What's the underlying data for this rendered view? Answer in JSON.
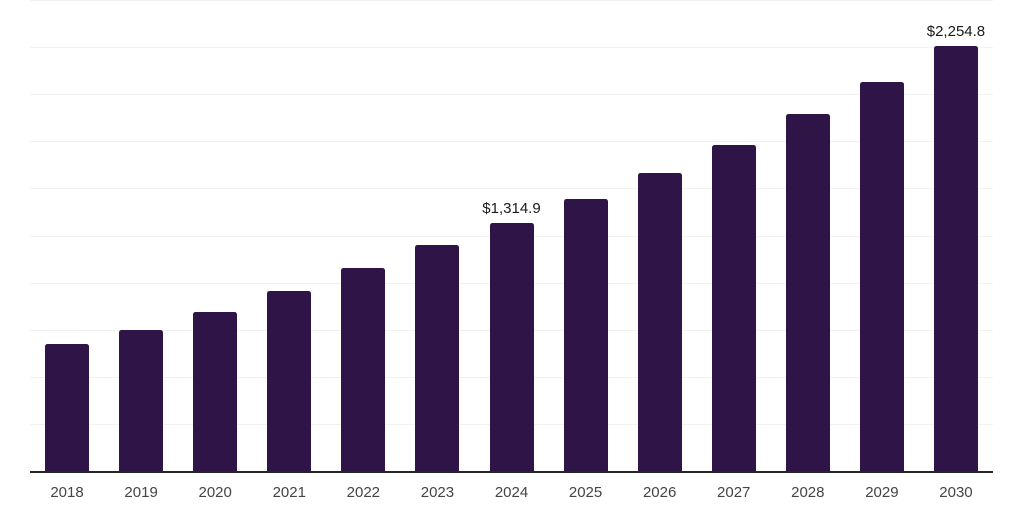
{
  "chart_data": {
    "type": "bar",
    "title": "",
    "categories": [
      "2018",
      "2019",
      "2020",
      "2021",
      "2022",
      "2023",
      "2024",
      "2025",
      "2026",
      "2027",
      "2028",
      "2029",
      "2030"
    ],
    "values": [
      675,
      750,
      845,
      955,
      1080,
      1200,
      1314.9,
      1445,
      1580,
      1730,
      1895,
      2065,
      2254.8
    ],
    "data_labels": [
      "",
      "",
      "",
      "",
      "",
      "",
      "$1,314.9",
      "",
      "",
      "",
      "",
      "",
      "$2,254.8"
    ],
    "xlabel": "",
    "ylabel": "",
    "ylim": [
      0,
      2500
    ],
    "gridline_step": 250,
    "grid": true,
    "legend": false,
    "colors": {
      "bar": "#2F1448",
      "gridline": "#f2f2f2",
      "axis_line": "#262626",
      "tick_label": "#444444",
      "data_label": "#1a1a1a",
      "background": "#ffffff"
    }
  }
}
